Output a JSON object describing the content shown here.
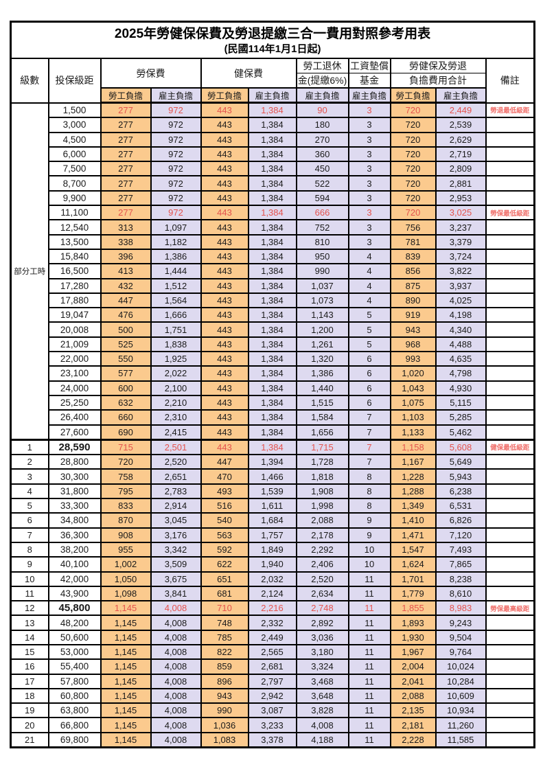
{
  "title": "2025年勞健保保費及勞退提繳三合一費用對照參考用表",
  "subtitle": "(民國114年1月1日起)",
  "colors": {
    "employee_col_bg": "#fbca8e",
    "employer_col_bg": "#dedaf0",
    "highlight_value_red": "#e4534e",
    "remark_red": "#f0706b",
    "border_black": "#000000"
  },
  "header": {
    "level": "級數",
    "bracket": "投保級距",
    "labor_insurance": "勞保費",
    "health_insurance": "健保費",
    "pension_line1": "勞工退休",
    "pension_line2": "金(提繳6%)",
    "wage_fund_line1": "工資墊償",
    "wage_fund_line2": "基金",
    "total_line1": "勞健保及勞退",
    "total_line2": "負擔費用合計",
    "remark": "備註",
    "employee": "勞工負擔",
    "employer": "雇主負擔"
  },
  "part_time_label": "部分工時",
  "value_columns": [
    "勞保費勞工負擔",
    "勞保費雇主負擔",
    "健保費勞工負擔",
    "健保費雇主負擔",
    "勞工退休金雇主負擔",
    "工資墊償基金雇主負擔",
    "合計勞工負擔",
    "合計雇主負擔"
  ],
  "rows": [
    {
      "level": "",
      "bracket": "1,500",
      "values": [
        "277",
        "972",
        "443",
        "1,384",
        "90",
        "3",
        "720",
        "2,449"
      ],
      "remark": "勞退最低級距",
      "red": true,
      "bold_bracket": false
    },
    {
      "level": "",
      "bracket": "3,000",
      "values": [
        "277",
        "972",
        "443",
        "1,384",
        "180",
        "3",
        "720",
        "2,539"
      ],
      "remark": "",
      "red": false,
      "bold_bracket": false
    },
    {
      "level": "",
      "bracket": "4,500",
      "values": [
        "277",
        "972",
        "443",
        "1,384",
        "270",
        "3",
        "720",
        "2,629"
      ],
      "remark": "",
      "red": false,
      "bold_bracket": false
    },
    {
      "level": "",
      "bracket": "6,000",
      "values": [
        "277",
        "972",
        "443",
        "1,384",
        "360",
        "3",
        "720",
        "2,719"
      ],
      "remark": "",
      "red": false,
      "bold_bracket": false
    },
    {
      "level": "",
      "bracket": "7,500",
      "values": [
        "277",
        "972",
        "443",
        "1,384",
        "450",
        "3",
        "720",
        "2,809"
      ],
      "remark": "",
      "red": false,
      "bold_bracket": false
    },
    {
      "level": "",
      "bracket": "8,700",
      "values": [
        "277",
        "972",
        "443",
        "1,384",
        "522",
        "3",
        "720",
        "2,881"
      ],
      "remark": "",
      "red": false,
      "bold_bracket": false
    },
    {
      "level": "",
      "bracket": "9,900",
      "values": [
        "277",
        "972",
        "443",
        "1,384",
        "594",
        "3",
        "720",
        "2,953"
      ],
      "remark": "",
      "red": false,
      "bold_bracket": false
    },
    {
      "level": "",
      "bracket": "11,100",
      "values": [
        "277",
        "972",
        "443",
        "1,384",
        "666",
        "3",
        "720",
        "3,025"
      ],
      "remark": "勞保最低級距",
      "red": true,
      "bold_bracket": false
    },
    {
      "level": "",
      "bracket": "12,540",
      "values": [
        "313",
        "1,097",
        "443",
        "1,384",
        "752",
        "3",
        "756",
        "3,237"
      ],
      "remark": "",
      "red": false,
      "bold_bracket": false
    },
    {
      "level": "",
      "bracket": "13,500",
      "values": [
        "338",
        "1,182",
        "443",
        "1,384",
        "810",
        "3",
        "781",
        "3,379"
      ],
      "remark": "",
      "red": false,
      "bold_bracket": false
    },
    {
      "level": "",
      "bracket": "15,840",
      "values": [
        "396",
        "1,386",
        "443",
        "1,384",
        "950",
        "4",
        "839",
        "3,724"
      ],
      "remark": "",
      "red": false,
      "bold_bracket": false
    },
    {
      "level": "",
      "bracket": "16,500",
      "values": [
        "413",
        "1,444",
        "443",
        "1,384",
        "990",
        "4",
        "856",
        "3,822"
      ],
      "remark": "",
      "red": false,
      "bold_bracket": false
    },
    {
      "level": "",
      "bracket": "17,280",
      "values": [
        "432",
        "1,512",
        "443",
        "1,384",
        "1,037",
        "4",
        "875",
        "3,937"
      ],
      "remark": "",
      "red": false,
      "bold_bracket": false
    },
    {
      "level": "",
      "bracket": "17,880",
      "values": [
        "447",
        "1,564",
        "443",
        "1,384",
        "1,073",
        "4",
        "890",
        "4,025"
      ],
      "remark": "",
      "red": false,
      "bold_bracket": false
    },
    {
      "level": "",
      "bracket": "19,047",
      "values": [
        "476",
        "1,666",
        "443",
        "1,384",
        "1,143",
        "5",
        "919",
        "4,198"
      ],
      "remark": "",
      "red": false,
      "bold_bracket": false
    },
    {
      "level": "",
      "bracket": "20,008",
      "values": [
        "500",
        "1,751",
        "443",
        "1,384",
        "1,200",
        "5",
        "943",
        "4,340"
      ],
      "remark": "",
      "red": false,
      "bold_bracket": false
    },
    {
      "level": "",
      "bracket": "21,009",
      "values": [
        "525",
        "1,838",
        "443",
        "1,384",
        "1,261",
        "5",
        "968",
        "4,488"
      ],
      "remark": "",
      "red": false,
      "bold_bracket": false
    },
    {
      "level": "",
      "bracket": "22,000",
      "values": [
        "550",
        "1,925",
        "443",
        "1,384",
        "1,320",
        "6",
        "993",
        "4,635"
      ],
      "remark": "",
      "red": false,
      "bold_bracket": false
    },
    {
      "level": "",
      "bracket": "23,100",
      "values": [
        "577",
        "2,022",
        "443",
        "1,384",
        "1,386",
        "6",
        "1,020",
        "4,798"
      ],
      "remark": "",
      "red": false,
      "bold_bracket": false
    },
    {
      "level": "",
      "bracket": "24,000",
      "values": [
        "600",
        "2,100",
        "443",
        "1,384",
        "1,440",
        "6",
        "1,043",
        "4,930"
      ],
      "remark": "",
      "red": false,
      "bold_bracket": false
    },
    {
      "level": "",
      "bracket": "25,250",
      "values": [
        "632",
        "2,210",
        "443",
        "1,384",
        "1,515",
        "6",
        "1,075",
        "5,115"
      ],
      "remark": "",
      "red": false,
      "bold_bracket": false
    },
    {
      "level": "",
      "bracket": "26,400",
      "values": [
        "660",
        "2,310",
        "443",
        "1,384",
        "1,584",
        "7",
        "1,103",
        "5,285"
      ],
      "remark": "",
      "red": false,
      "bold_bracket": false
    },
    {
      "level": "",
      "bracket": "27,600",
      "values": [
        "690",
        "2,415",
        "443",
        "1,384",
        "1,656",
        "7",
        "1,133",
        "5,462"
      ],
      "remark": "",
      "red": false,
      "bold_bracket": false
    },
    {
      "level": "1",
      "bracket": "28,590",
      "values": [
        "715",
        "2,501",
        "443",
        "1,384",
        "1,715",
        "7",
        "1,158",
        "5,608"
      ],
      "remark": "健保最低級距",
      "red": true,
      "bold_bracket": true
    },
    {
      "level": "2",
      "bracket": "28,800",
      "values": [
        "720",
        "2,520",
        "447",
        "1,394",
        "1,728",
        "7",
        "1,167",
        "5,649"
      ],
      "remark": "",
      "red": false,
      "bold_bracket": false
    },
    {
      "level": "3",
      "bracket": "30,300",
      "values": [
        "758",
        "2,651",
        "470",
        "1,466",
        "1,818",
        "8",
        "1,228",
        "5,943"
      ],
      "remark": "",
      "red": false,
      "bold_bracket": false
    },
    {
      "level": "4",
      "bracket": "31,800",
      "values": [
        "795",
        "2,783",
        "493",
        "1,539",
        "1,908",
        "8",
        "1,288",
        "6,238"
      ],
      "remark": "",
      "red": false,
      "bold_bracket": false
    },
    {
      "level": "5",
      "bracket": "33,300",
      "values": [
        "833",
        "2,914",
        "516",
        "1,611",
        "1,998",
        "8",
        "1,349",
        "6,531"
      ],
      "remark": "",
      "red": false,
      "bold_bracket": false
    },
    {
      "level": "6",
      "bracket": "34,800",
      "values": [
        "870",
        "3,045",
        "540",
        "1,684",
        "2,088",
        "9",
        "1,410",
        "6,826"
      ],
      "remark": "",
      "red": false,
      "bold_bracket": false
    },
    {
      "level": "7",
      "bracket": "36,300",
      "values": [
        "908",
        "3,176",
        "563",
        "1,757",
        "2,178",
        "9",
        "1,471",
        "7,120"
      ],
      "remark": "",
      "red": false,
      "bold_bracket": false
    },
    {
      "level": "8",
      "bracket": "38,200",
      "values": [
        "955",
        "3,342",
        "592",
        "1,849",
        "2,292",
        "10",
        "1,547",
        "7,493"
      ],
      "remark": "",
      "red": false,
      "bold_bracket": false
    },
    {
      "level": "9",
      "bracket": "40,100",
      "values": [
        "1,002",
        "3,509",
        "622",
        "1,940",
        "2,406",
        "10",
        "1,624",
        "7,865"
      ],
      "remark": "",
      "red": false,
      "bold_bracket": false
    },
    {
      "level": "10",
      "bracket": "42,000",
      "values": [
        "1,050",
        "3,675",
        "651",
        "2,032",
        "2,520",
        "11",
        "1,701",
        "8,238"
      ],
      "remark": "",
      "red": false,
      "bold_bracket": false
    },
    {
      "level": "11",
      "bracket": "43,900",
      "values": [
        "1,098",
        "3,841",
        "681",
        "2,124",
        "2,634",
        "11",
        "1,779",
        "8,610"
      ],
      "remark": "",
      "red": false,
      "bold_bracket": false
    },
    {
      "level": "12",
      "bracket": "45,800",
      "values": [
        "1,145",
        "4,008",
        "710",
        "2,216",
        "2,748",
        "11",
        "1,855",
        "8,983"
      ],
      "remark": "勞保最高級距",
      "red": true,
      "bold_bracket": true
    },
    {
      "level": "13",
      "bracket": "48,200",
      "values": [
        "1,145",
        "4,008",
        "748",
        "2,332",
        "2,892",
        "11",
        "1,893",
        "9,243"
      ],
      "remark": "",
      "red": false,
      "bold_bracket": false
    },
    {
      "level": "14",
      "bracket": "50,600",
      "values": [
        "1,145",
        "4,008",
        "785",
        "2,449",
        "3,036",
        "11",
        "1,930",
        "9,504"
      ],
      "remark": "",
      "red": false,
      "bold_bracket": false
    },
    {
      "level": "15",
      "bracket": "53,000",
      "values": [
        "1,145",
        "4,008",
        "822",
        "2,565",
        "3,180",
        "11",
        "1,967",
        "9,764"
      ],
      "remark": "",
      "red": false,
      "bold_bracket": false
    },
    {
      "level": "16",
      "bracket": "55,400",
      "values": [
        "1,145",
        "4,008",
        "859",
        "2,681",
        "3,324",
        "11",
        "2,004",
        "10,024"
      ],
      "remark": "",
      "red": false,
      "bold_bracket": false
    },
    {
      "level": "17",
      "bracket": "57,800",
      "values": [
        "1,145",
        "4,008",
        "896",
        "2,797",
        "3,468",
        "11",
        "2,041",
        "10,284"
      ],
      "remark": "",
      "red": false,
      "bold_bracket": false
    },
    {
      "level": "18",
      "bracket": "60,800",
      "values": [
        "1,145",
        "4,008",
        "943",
        "2,942",
        "3,648",
        "11",
        "2,088",
        "10,609"
      ],
      "remark": "",
      "red": false,
      "bold_bracket": false
    },
    {
      "level": "19",
      "bracket": "63,800",
      "values": [
        "1,145",
        "4,008",
        "990",
        "3,087",
        "3,828",
        "11",
        "2,135",
        "10,934"
      ],
      "remark": "",
      "red": false,
      "bold_bracket": false
    },
    {
      "level": "20",
      "bracket": "66,800",
      "values": [
        "1,145",
        "4,008",
        "1,036",
        "3,233",
        "4,008",
        "11",
        "2,181",
        "11,260"
      ],
      "remark": "",
      "red": false,
      "bold_bracket": false
    },
    {
      "level": "21",
      "bracket": "69,800",
      "values": [
        "1,145",
        "4,008",
        "1,083",
        "3,378",
        "4,188",
        "11",
        "2,228",
        "11,585"
      ],
      "remark": "",
      "red": false,
      "bold_bracket": false
    }
  ]
}
